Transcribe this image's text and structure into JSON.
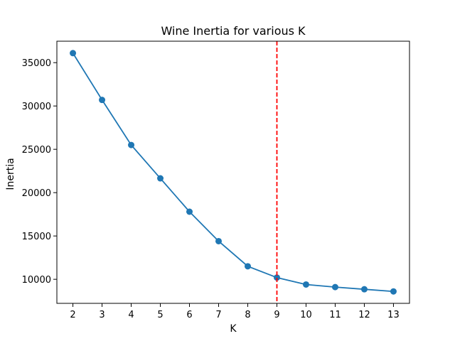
{
  "chart_data": {
    "type": "line",
    "title": "Wine Inertia for various K",
    "xlabel": "K",
    "ylabel": "Inertia",
    "x": [
      2,
      3,
      4,
      5,
      6,
      7,
      8,
      9,
      10,
      11,
      12,
      13
    ],
    "series": [
      {
        "values": [
          36100,
          30700,
          25500,
          21650,
          17800,
          14400,
          11500,
          10200,
          9400,
          9100,
          8850,
          8600
        ],
        "color": "#1f77b4",
        "marker": "circle"
      }
    ],
    "xticks": [
      2,
      3,
      4,
      5,
      6,
      7,
      8,
      9,
      10,
      11,
      12,
      13
    ],
    "yticks": [
      10000,
      15000,
      20000,
      25000,
      30000,
      35000
    ],
    "xlim": [
      1.45,
      13.55
    ],
    "ylim": [
      7225,
      37475
    ],
    "vline": {
      "x": 9,
      "color": "#ff0000",
      "style": "dashed"
    },
    "grid": false,
    "legend": "none"
  }
}
